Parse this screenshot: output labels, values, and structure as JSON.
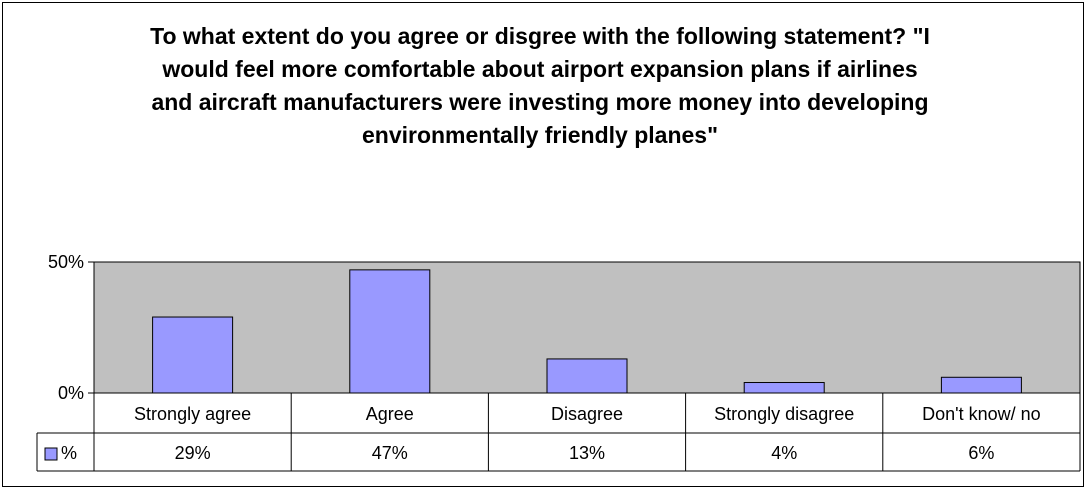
{
  "chart_data": {
    "type": "bar",
    "title": "To what extent do you agree or disgree with the following statement? \"I would feel more comfortable about airport expansion plans if airlines and aircraft manufacturers were investing more money into developing environmentally friendly planes\"",
    "categories": [
      "Strongly agree",
      "Agree",
      "Disagree",
      "Strongly disagree",
      "Don't know/ no"
    ],
    "series": [
      {
        "name": "%",
        "values": [
          29,
          47,
          13,
          4,
          6
        ],
        "labels": [
          "29%",
          "47%",
          "13%",
          "4%",
          "6%"
        ]
      }
    ],
    "ylim": [
      0,
      50
    ],
    "yticks": [
      0,
      50
    ],
    "ytick_labels": [
      "0%",
      "50%"
    ],
    "xlabel": "",
    "ylabel": "",
    "grid": false,
    "legend": "data-table-left",
    "colors": {
      "bar": "#9999ff",
      "plot_bg": "#c0c0c0",
      "border": "#000000"
    }
  }
}
